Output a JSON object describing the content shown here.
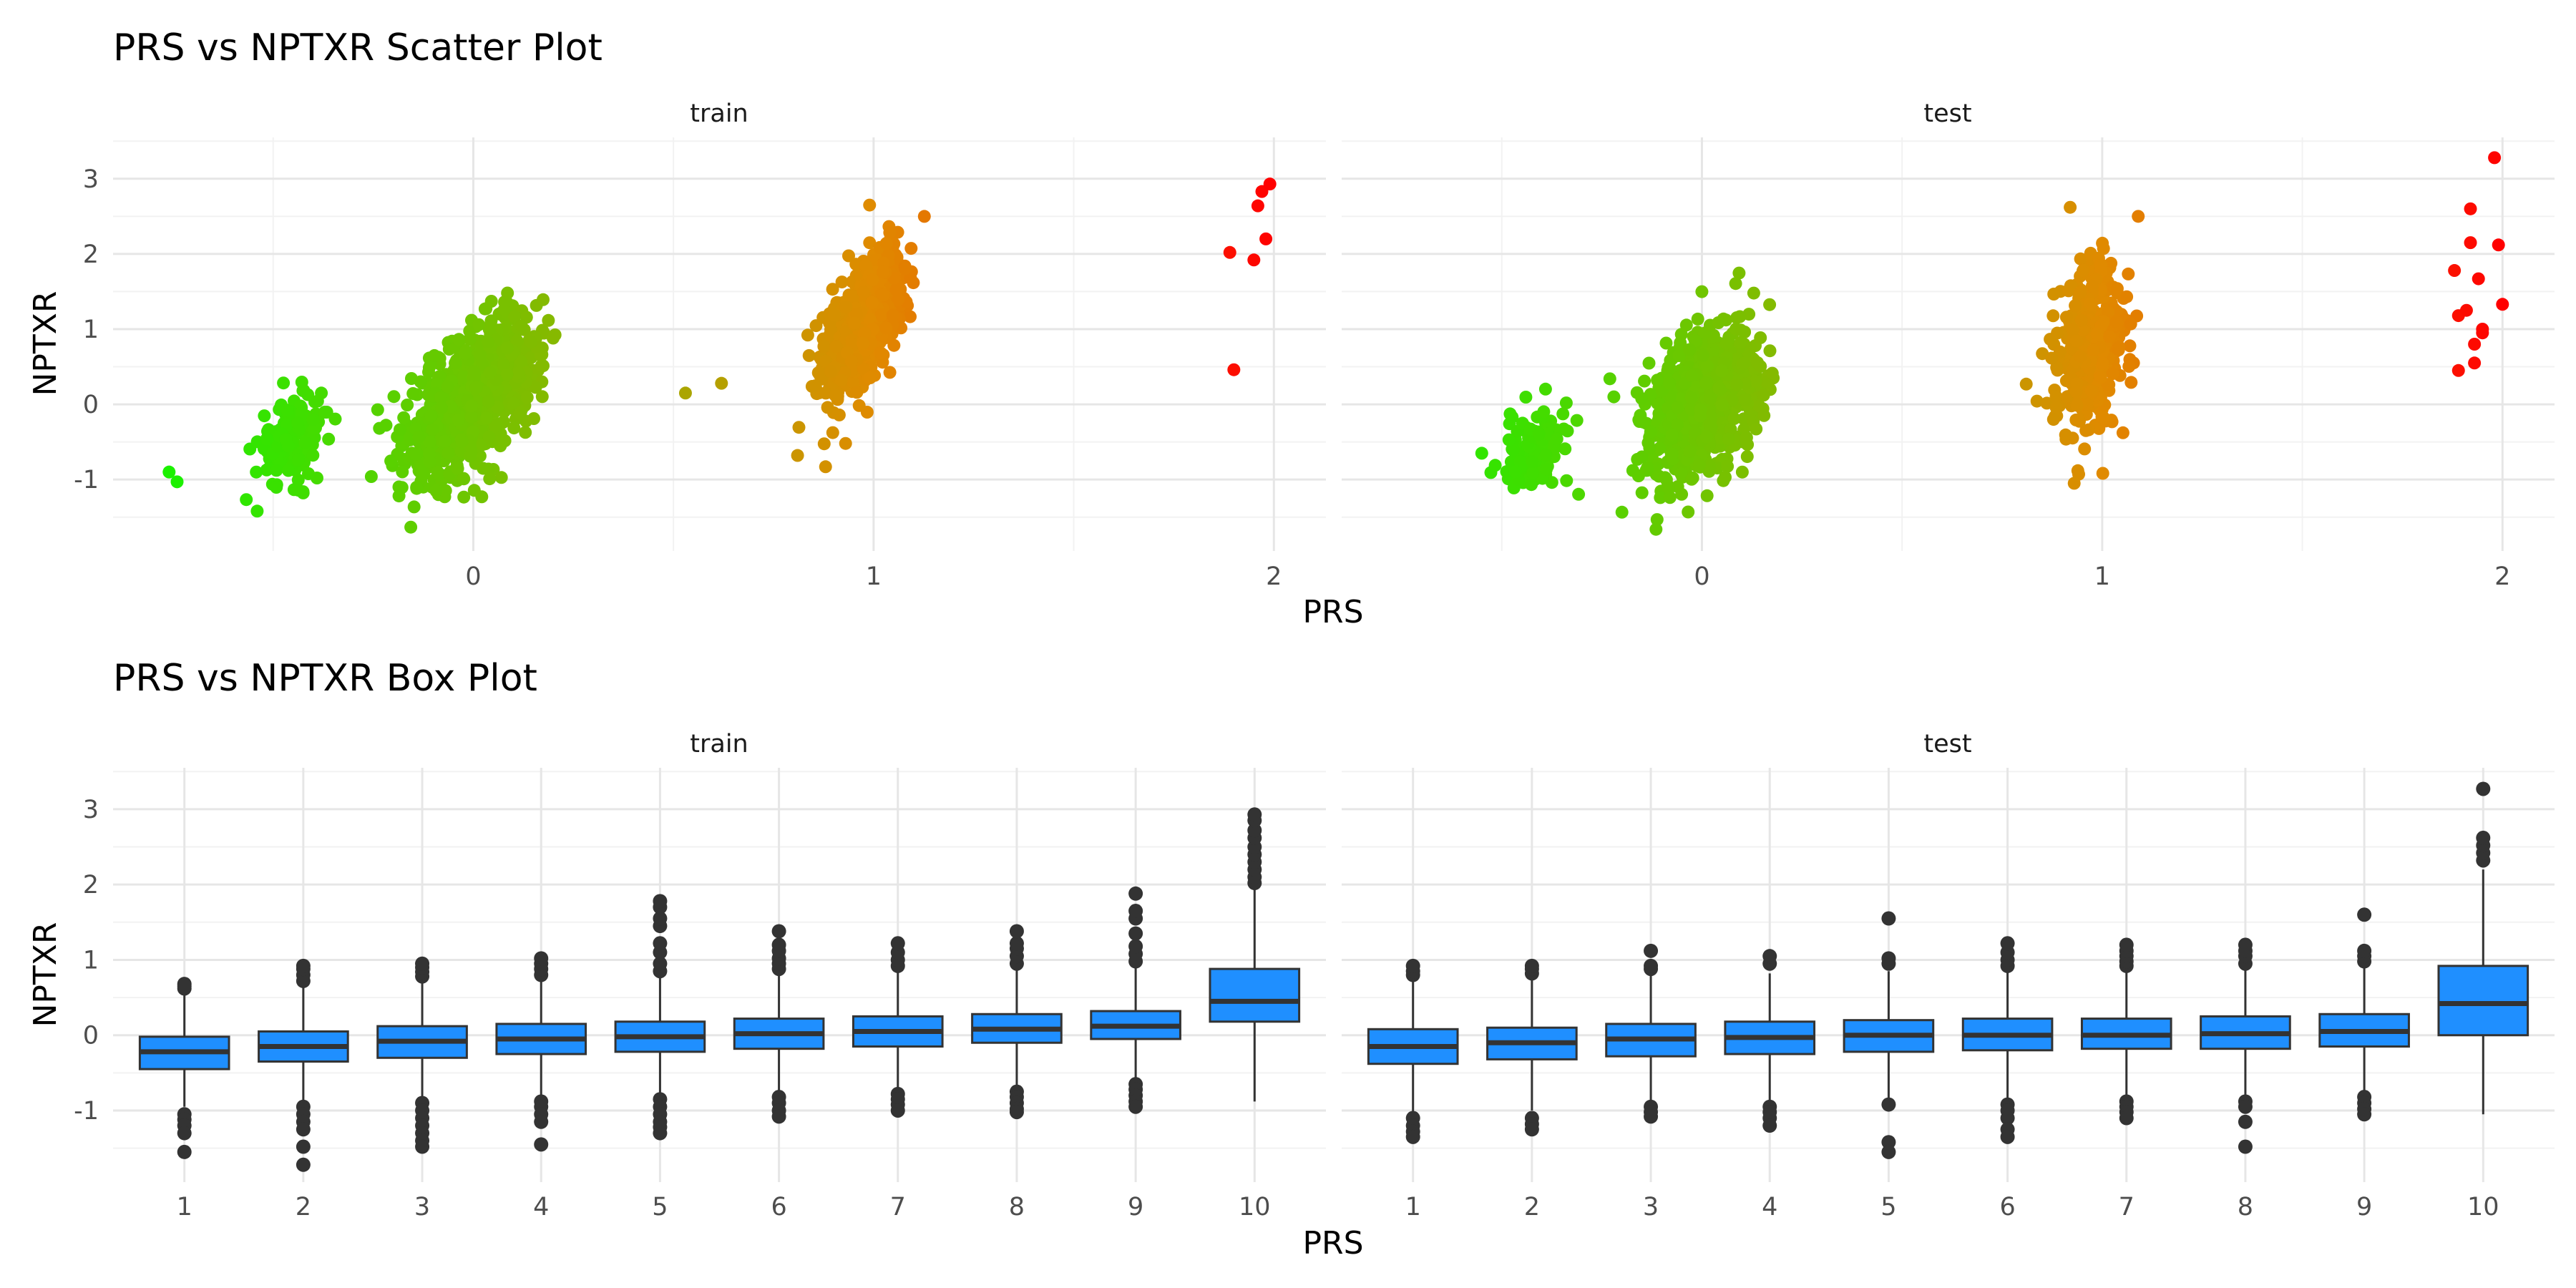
{
  "chart_data": [
    {
      "type": "scatter",
      "title": "PRS vs NPTXR Scatter Plot",
      "xlabel": "PRS",
      "ylabel": "NPTXR",
      "facets": [
        "train",
        "test"
      ],
      "xlim": [
        -0.9,
        2.13
      ],
      "ylim": [
        -1.95,
        3.55
      ],
      "xticks": [
        0,
        1,
        2
      ],
      "yticks": [
        -1,
        0,
        1,
        2,
        3
      ],
      "color_scale": {
        "low": "#00ff00",
        "mid": "#e08a00",
        "high": "#ff0000"
      },
      "panels": [
        {
          "facet": "train",
          "clusters": [
            {
              "x": -0.45,
              "y": -0.45,
              "sx": 0.045,
              "sy": 0.3,
              "n": 150,
              "rho": 0.3
            },
            {
              "x": 0.0,
              "y": 0.1,
              "sx": 0.08,
              "sy": 0.5,
              "n": 900,
              "rho": 0.55
            },
            {
              "x": 0.97,
              "y": 1.05,
              "sx": 0.05,
              "sy": 0.48,
              "n": 700,
              "rho": 0.6
            }
          ],
          "points": [
            {
              "x": -0.76,
              "y": -0.9
            },
            {
              "x": -0.74,
              "y": -1.03
            },
            {
              "x": 0.53,
              "y": 0.15
            },
            {
              "x": 0.62,
              "y": 0.28
            },
            {
              "x": 0.81,
              "y": -0.68
            },
            {
              "x": 0.93,
              "y": -0.52
            },
            {
              "x": 0.88,
              "y": -0.83
            },
            {
              "x": 0.99,
              "y": 2.65
            },
            {
              "x": 1.89,
              "y": 2.02
            },
            {
              "x": 1.9,
              "y": 0.46
            },
            {
              "x": 1.95,
              "y": 1.92
            },
            {
              "x": 1.96,
              "y": 2.64
            },
            {
              "x": 1.97,
              "y": 2.83
            },
            {
              "x": 1.98,
              "y": 2.2
            },
            {
              "x": 1.99,
              "y": 2.93
            }
          ]
        },
        {
          "facet": "test",
          "clusters": [
            {
              "x": -0.42,
              "y": -0.62,
              "sx": 0.045,
              "sy": 0.3,
              "n": 110,
              "rho": 0.3
            },
            {
              "x": 0.0,
              "y": 0.0,
              "sx": 0.07,
              "sy": 0.5,
              "n": 700,
              "rho": 0.35
            },
            {
              "x": 0.97,
              "y": 0.72,
              "sx": 0.04,
              "sy": 0.55,
              "n": 500,
              "rho": 0.3
            }
          ],
          "points": [
            {
              "x": -0.55,
              "y": -0.65
            },
            {
              "x": -0.23,
              "y": 0.34
            },
            {
              "x": -0.22,
              "y": 0.1
            },
            {
              "x": 0.92,
              "y": 2.62
            },
            {
              "x": 1.09,
              "y": 2.5
            },
            {
              "x": 0.93,
              "y": -1.05
            },
            {
              "x": 1.88,
              "y": 1.78
            },
            {
              "x": 1.89,
              "y": 1.18
            },
            {
              "x": 1.89,
              "y": 0.45
            },
            {
              "x": 1.91,
              "y": 1.25
            },
            {
              "x": 1.92,
              "y": 2.6
            },
            {
              "x": 1.92,
              "y": 2.15
            },
            {
              "x": 1.93,
              "y": 0.55
            },
            {
              "x": 1.93,
              "y": 0.8
            },
            {
              "x": 1.94,
              "y": 1.67
            },
            {
              "x": 1.95,
              "y": 1.0
            },
            {
              "x": 1.95,
              "y": 0.95
            },
            {
              "x": 1.98,
              "y": 3.28
            },
            {
              "x": 1.99,
              "y": 2.12
            },
            {
              "x": 2.0,
              "y": 1.33
            }
          ]
        }
      ]
    },
    {
      "type": "box",
      "title": "PRS vs NPTXR Box Plot",
      "xlabel": "PRS",
      "ylabel": "NPTXR",
      "facets": [
        "train",
        "test"
      ],
      "categories": [
        "1",
        "2",
        "3",
        "4",
        "5",
        "6",
        "7",
        "8",
        "9",
        "10"
      ],
      "ylim": [
        -1.95,
        3.55
      ],
      "yticks": [
        -1,
        0,
        1,
        2,
        3
      ],
      "fill": "#1f8fff",
      "panels": [
        {
          "facet": "train",
          "boxes": [
            {
              "q1": -0.45,
              "median": -0.22,
              "q3": -0.02,
              "lower": -0.95,
              "upper": 0.58,
              "outliers": [
                0.62,
                0.68,
                0.65,
                -1.05,
                -1.12,
                -1.2,
                -1.3,
                -1.55
              ]
            },
            {
              "q1": -0.35,
              "median": -0.15,
              "q3": 0.05,
              "lower": -0.9,
              "upper": 0.65,
              "outliers": [
                0.72,
                0.8,
                0.88,
                0.92,
                -0.95,
                -1.05,
                -1.15,
                -1.25,
                -1.48,
                -1.72
              ]
            },
            {
              "q1": -0.3,
              "median": -0.08,
              "q3": 0.12,
              "lower": -0.85,
              "upper": 0.72,
              "outliers": [
                0.78,
                0.84,
                0.9,
                0.95,
                -0.9,
                -1.0,
                -1.1,
                -1.2,
                -1.3,
                -1.4,
                -1.48
              ]
            },
            {
              "q1": -0.25,
              "median": -0.05,
              "q3": 0.15,
              "lower": -0.82,
              "upper": 0.75,
              "outliers": [
                0.8,
                0.88,
                0.95,
                1.02,
                -0.88,
                -0.95,
                -1.05,
                -1.15,
                -1.45
              ]
            },
            {
              "q1": -0.22,
              "median": -0.02,
              "q3": 0.18,
              "lower": -0.8,
              "upper": 0.78,
              "outliers": [
                0.85,
                0.95,
                1.1,
                1.22,
                1.45,
                1.55,
                1.7,
                1.78,
                -0.85,
                -0.95,
                -1.05,
                -1.15,
                -1.22,
                -1.3
              ]
            },
            {
              "q1": -0.18,
              "median": 0.02,
              "q3": 0.22,
              "lower": -0.75,
              "upper": 0.82,
              "outliers": [
                0.88,
                0.95,
                1.02,
                1.12,
                1.2,
                1.38,
                -0.82,
                -0.9,
                -1.0,
                -1.08
              ]
            },
            {
              "q1": -0.15,
              "median": 0.05,
              "q3": 0.25,
              "lower": -0.72,
              "upper": 0.85,
              "outliers": [
                0.92,
                1.0,
                1.1,
                1.22,
                -0.78,
                -0.85,
                -0.92,
                -1.0
              ]
            },
            {
              "q1": -0.1,
              "median": 0.08,
              "q3": 0.28,
              "lower": -0.68,
              "upper": 0.88,
              "outliers": [
                0.95,
                1.05,
                1.15,
                1.22,
                1.38,
                -0.75,
                -0.82,
                -0.9,
                -0.98,
                -1.02
              ]
            },
            {
              "q1": -0.05,
              "median": 0.12,
              "q3": 0.32,
              "lower": -0.62,
              "upper": 0.9,
              "outliers": [
                0.98,
                1.08,
                1.18,
                1.35,
                1.55,
                1.65,
                1.88,
                -0.65,
                -0.72,
                -0.8,
                -0.88,
                -0.95
              ]
            },
            {
              "q1": 0.18,
              "median": 0.45,
              "q3": 0.88,
              "lower": -0.88,
              "upper": 1.95,
              "outliers": [
                2.02,
                2.1,
                2.2,
                2.3,
                2.4,
                2.5,
                2.62,
                2.72,
                2.85,
                2.93
              ]
            }
          ]
        },
        {
          "facet": "test",
          "boxes": [
            {
              "q1": -0.38,
              "median": -0.15,
              "q3": 0.08,
              "lower": -1.05,
              "upper": 0.72,
              "outliers": [
                0.8,
                0.85,
                0.92,
                -1.1,
                -1.2,
                -1.28,
                -1.35
              ]
            },
            {
              "q1": -0.32,
              "median": -0.1,
              "q3": 0.1,
              "lower": -1.0,
              "upper": 0.78,
              "outliers": [
                0.82,
                0.88,
                0.92,
                -1.1,
                -1.18,
                -1.25
              ]
            },
            {
              "q1": -0.28,
              "median": -0.05,
              "q3": 0.15,
              "lower": -0.92,
              "upper": 0.82,
              "outliers": [
                0.88,
                0.92,
                1.12,
                -0.95,
                -1.02,
                -1.08
              ]
            },
            {
              "q1": -0.25,
              "median": -0.03,
              "q3": 0.18,
              "lower": -0.9,
              "upper": 0.82,
              "outliers": [
                0.95,
                1.05,
                -0.95,
                -1.02,
                -1.1,
                -1.2
              ]
            },
            {
              "q1": -0.22,
              "median": 0.0,
              "q3": 0.2,
              "lower": -0.88,
              "upper": 0.85,
              "outliers": [
                0.95,
                1.02,
                1.55,
                -0.92,
                -1.42,
                -1.55
              ]
            },
            {
              "q1": -0.2,
              "median": 0.0,
              "q3": 0.22,
              "lower": -0.85,
              "upper": 0.88,
              "outliers": [
                0.92,
                1.0,
                1.1,
                1.22,
                -0.92,
                -1.0,
                -1.1,
                -1.25,
                -1.35
              ]
            },
            {
              "q1": -0.18,
              "median": 0.0,
              "q3": 0.22,
              "lower": -0.82,
              "upper": 0.88,
              "outliers": [
                0.92,
                0.98,
                1.05,
                1.12,
                1.2,
                -0.88,
                -0.95,
                -1.02,
                -1.1
              ]
            },
            {
              "q1": -0.18,
              "median": 0.02,
              "q3": 0.25,
              "lower": -0.82,
              "upper": 0.9,
              "outliers": [
                0.95,
                1.05,
                1.12,
                1.2,
                -0.88,
                -0.95,
                -1.15,
                -1.48
              ]
            },
            {
              "q1": -0.15,
              "median": 0.05,
              "q3": 0.28,
              "lower": -0.78,
              "upper": 0.92,
              "outliers": [
                0.98,
                1.05,
                1.12,
                1.6,
                -0.82,
                -0.9,
                -0.98,
                -1.05
              ]
            },
            {
              "q1": 0.0,
              "median": 0.42,
              "q3": 0.92,
              "lower": -1.05,
              "upper": 2.2,
              "outliers": [
                2.32,
                2.42,
                2.52,
                2.62,
                3.27
              ]
            }
          ]
        }
      ]
    }
  ]
}
